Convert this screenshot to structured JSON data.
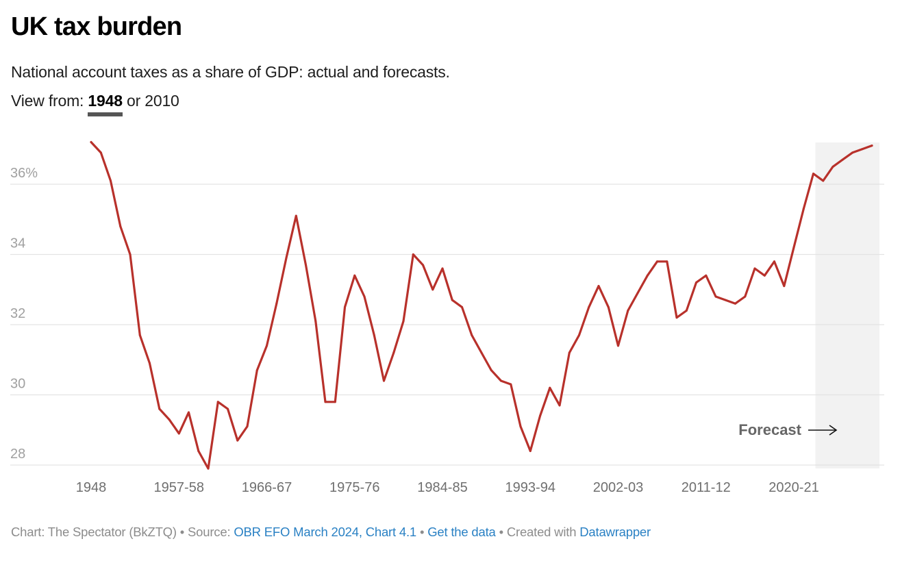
{
  "header": {
    "title": "UK tax burden",
    "subtitle": "National account taxes as a share of GDP: actual and forecasts.",
    "view_from_label": "View from:",
    "view_options": [
      "1948",
      "2010"
    ],
    "view_separator": "or",
    "view_selected": "1948"
  },
  "chart_data": {
    "type": "line",
    "title": "UK tax burden",
    "subtitle": "National account taxes as a share of GDP: actual and forecasts.",
    "xlabel": "",
    "ylabel": "",
    "ylim": [
      28,
      36
    ],
    "y_ticks": [
      36,
      34,
      32,
      30,
      28
    ],
    "y_tick_labels": [
      "36%",
      "34",
      "32",
      "30",
      "28"
    ],
    "x_tick_labels": [
      "1948",
      "1957-58",
      "1966-67",
      "1975-76",
      "1984-85",
      "1993-94",
      "2002-03",
      "2011-12",
      "2020-21"
    ],
    "x_tick_indices": [
      0,
      9,
      18,
      27,
      36,
      45,
      54,
      63,
      72
    ],
    "grid": true,
    "line_color": "#b8312b",
    "forecast_band_color": "#f2f2f2",
    "forecast_start_index": 74,
    "annotation": "Forecast",
    "series": [
      {
        "name": "Tax burden (% of GDP)",
        "values": [
          37.2,
          36.9,
          36.1,
          34.8,
          34.0,
          31.7,
          30.9,
          29.6,
          29.3,
          28.9,
          29.5,
          28.4,
          27.9,
          29.8,
          29.6,
          28.7,
          29.1,
          30.7,
          31.4,
          32.6,
          33.9,
          35.1,
          33.7,
          32.1,
          29.8,
          29.8,
          32.5,
          33.4,
          32.8,
          31.7,
          30.4,
          31.2,
          32.1,
          34.0,
          33.7,
          33.0,
          33.6,
          32.7,
          32.5,
          31.7,
          31.2,
          30.7,
          30.4,
          30.3,
          29.1,
          28.4,
          29.4,
          30.2,
          29.7,
          31.2,
          31.7,
          32.5,
          33.1,
          32.5,
          31.4,
          32.4,
          32.9,
          33.4,
          33.8,
          33.8,
          32.2,
          32.4,
          33.2,
          33.4,
          32.8,
          32.7,
          32.6,
          32.8,
          33.6,
          33.4,
          33.8,
          33.1,
          34.2,
          35.3,
          36.3,
          36.1,
          36.5,
          36.7,
          36.9,
          37.0,
          37.1
        ]
      }
    ]
  },
  "footer": {
    "chart_credit": "Chart: The Spectator (BkZTQ)",
    "sep1": "•",
    "source_label": "Source:",
    "source_link": "OBR EFO March 2024, Chart 4.1",
    "sep2": "•",
    "data_link": "Get the data",
    "sep3": "•",
    "created_with": "Created with",
    "tool_link": "Datawrapper"
  }
}
